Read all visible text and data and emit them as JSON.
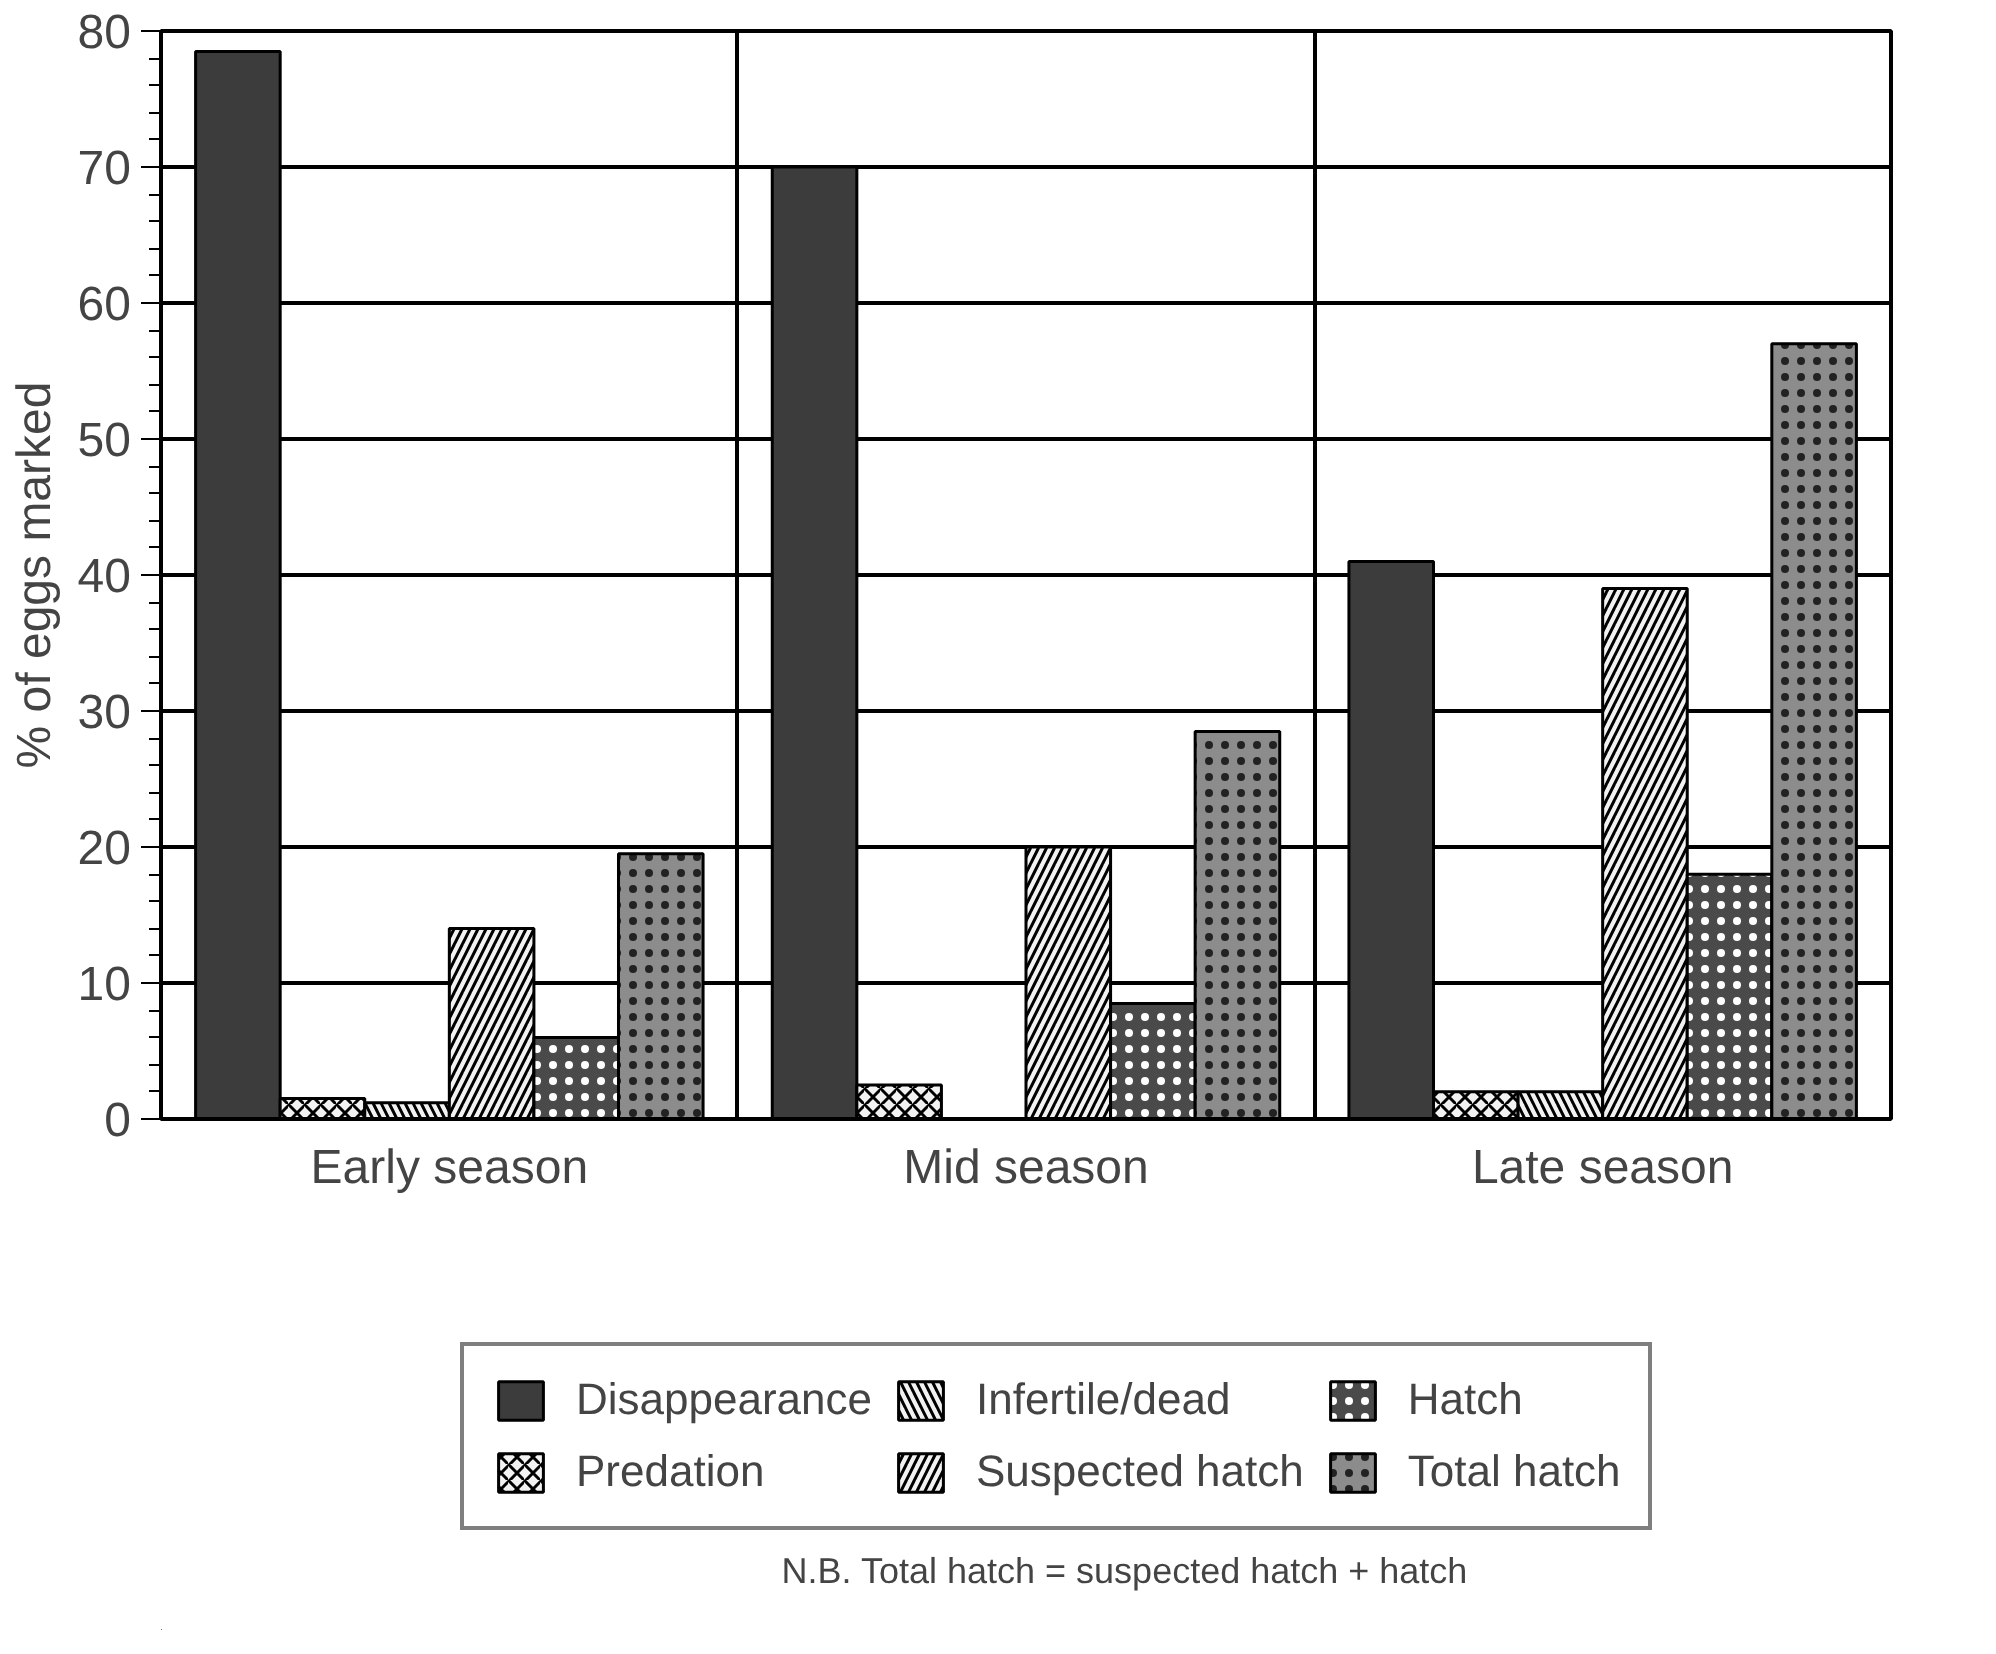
{
  "chart_data": {
    "type": "bar",
    "ylabel": "% of eggs marked",
    "categories": [
      "Early season",
      "Mid season",
      "Late season"
    ],
    "series": [
      {
        "name": "Disappearance",
        "color": "#3c3c3c",
        "values": [
          78.5,
          70,
          41
        ]
      },
      {
        "name": "Predation",
        "color": "#f2f2f2",
        "values": [
          1.5,
          2.5,
          2
        ]
      },
      {
        "name": "Infertile/dead",
        "color": "#f2f2f2",
        "values": [
          1.2,
          null,
          2
        ]
      },
      {
        "name": "Suspected hatch",
        "color": "#f2f2f2",
        "values": [
          14,
          20,
          39
        ]
      },
      {
        "name": "Hatch",
        "color": "#4a4a4a",
        "values": [
          6,
          8.5,
          18
        ]
      },
      {
        "name": "Total hatch",
        "color": "#8c8c8c",
        "values": [
          19.5,
          28.5,
          57
        ]
      }
    ],
    "ylim": [
      0,
      80
    ],
    "yticks": [
      0,
      10,
      20,
      30,
      40,
      50,
      60,
      70,
      80
    ],
    "grid": true,
    "legend": "bottom",
    "annotations": [
      "N.B.  Total hatch = suspected hatch + hatch"
    ]
  }
}
